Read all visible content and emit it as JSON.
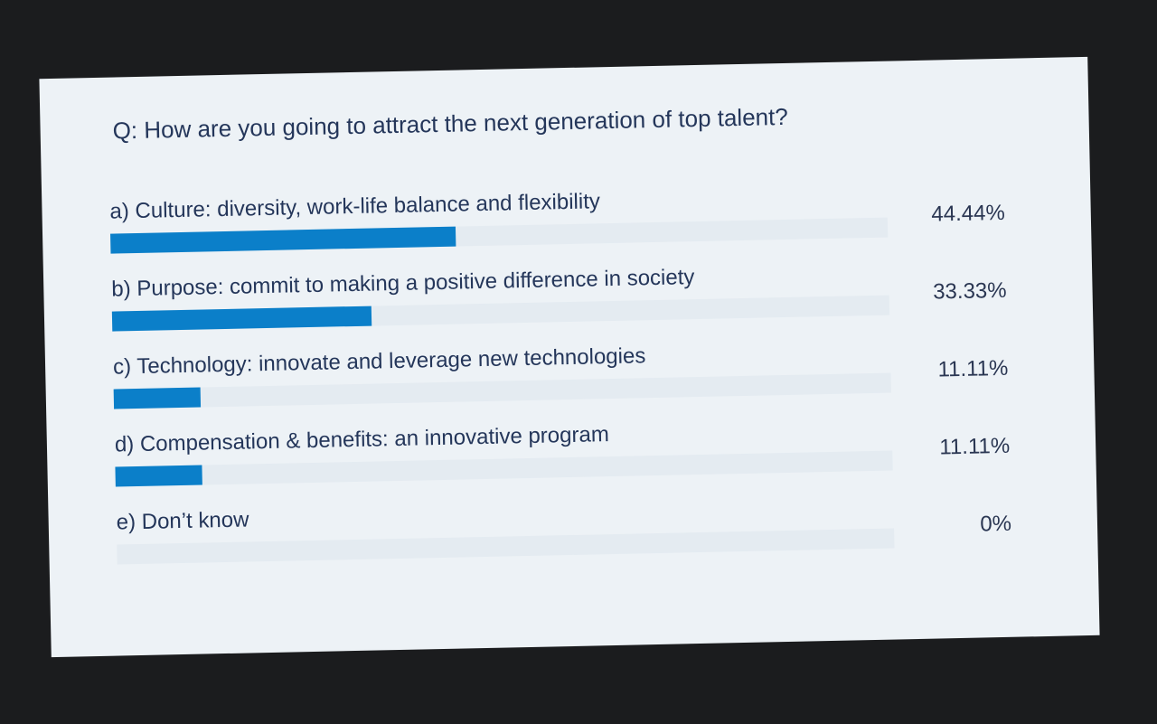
{
  "chart_data": {
    "type": "bar",
    "orientation": "horizontal",
    "title": "Q: How are you going to attract the next generation of top talent?",
    "categories": [
      "a) Culture: diversity, work-life balance and flexibility",
      "b) Purpose: commit to making a positive difference in society",
      "c) Technology: innovate and leverage new technologies",
      "d) Compensation & benefits: an innovative program",
      "e) Don’t know"
    ],
    "values": [
      44.44,
      33.33,
      11.11,
      11.11,
      0
    ],
    "value_labels": [
      "44.44%",
      "33.33%",
      "11.11%",
      "11.11%",
      "0%"
    ],
    "color": "#0b7fc9",
    "xlim": [
      0,
      100
    ]
  }
}
